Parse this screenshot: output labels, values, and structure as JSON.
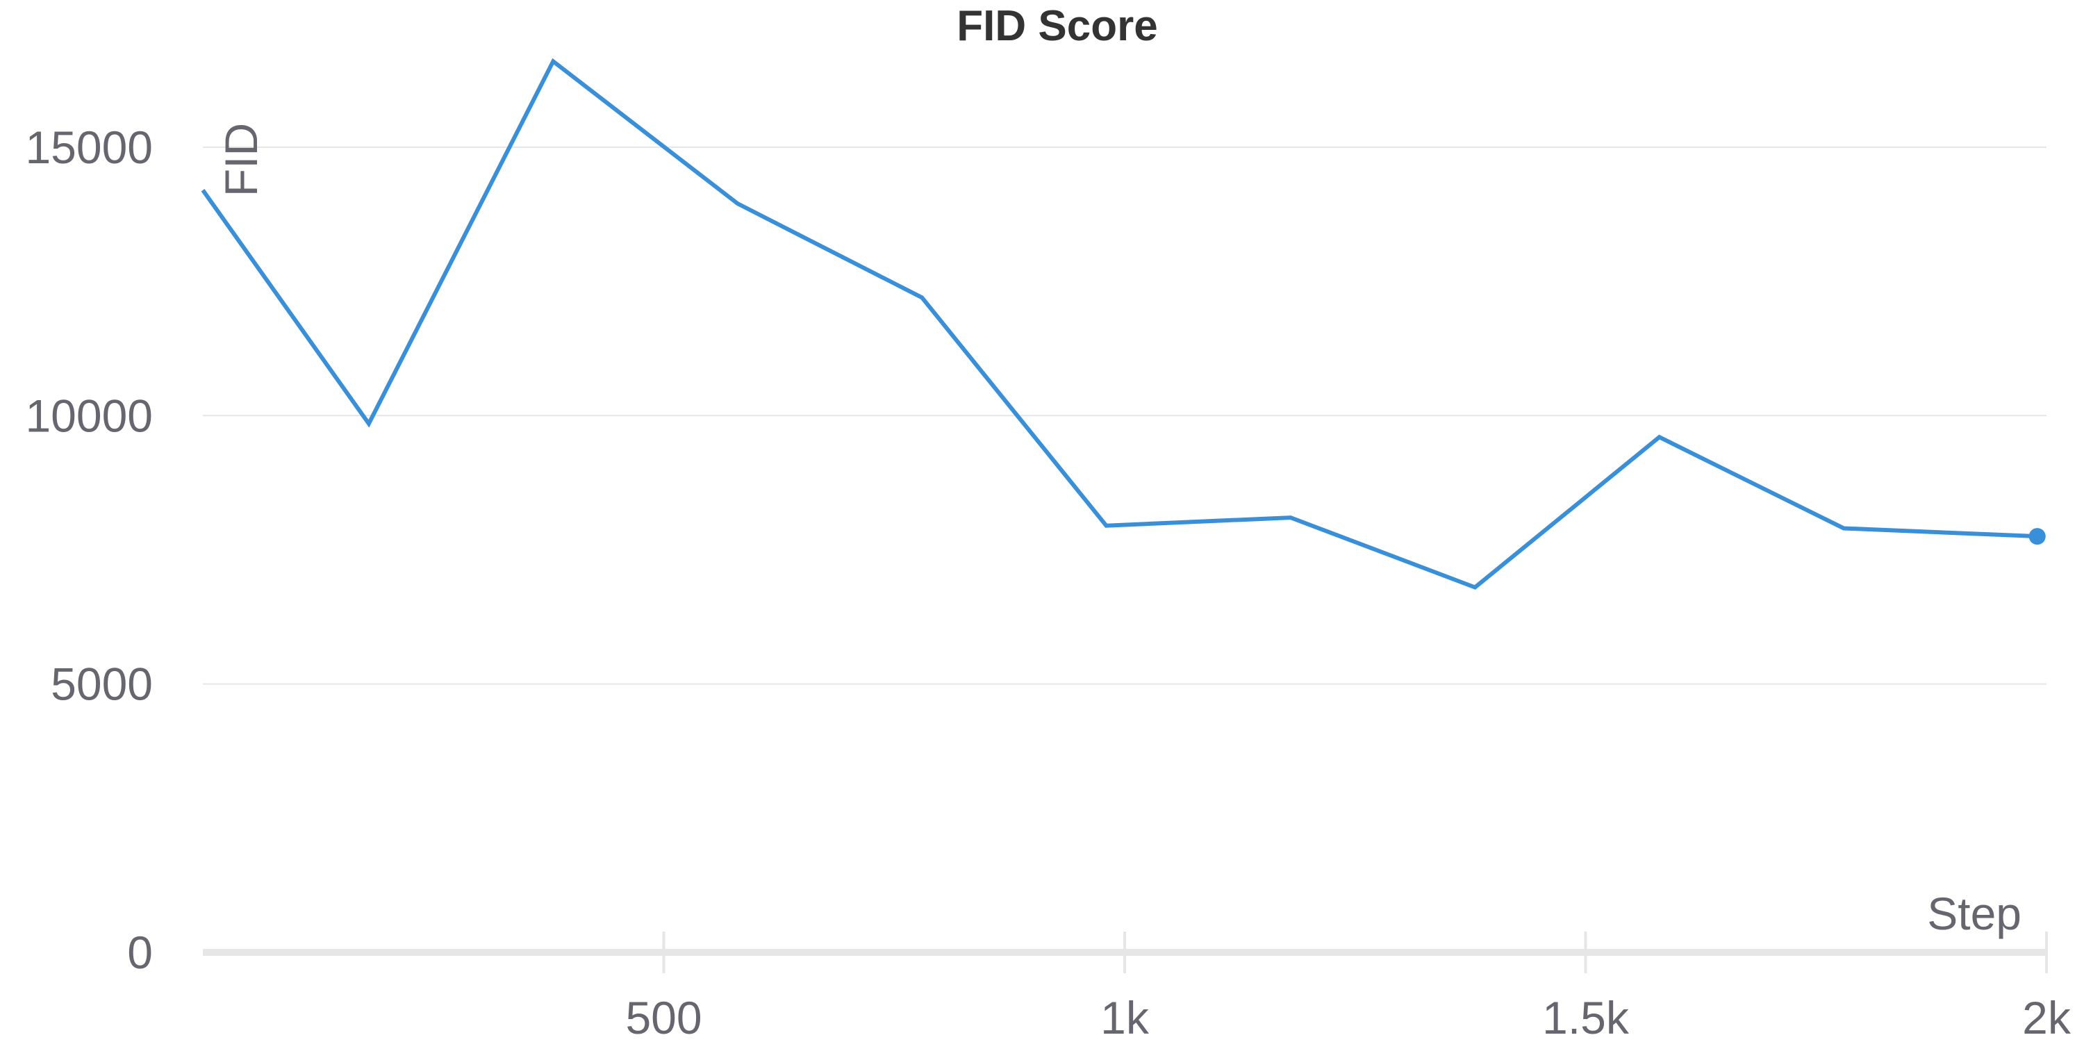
{
  "chart_data": {
    "type": "line",
    "title": "FID Score",
    "xlabel": "Step",
    "ylabel": "FID",
    "xlim": [
      0,
      2000
    ],
    "ylim": [
      0,
      16500
    ],
    "x_ticks": [
      500,
      1000,
      1500,
      2000
    ],
    "x_tick_labels": [
      "500",
      "1k",
      "1.5k",
      "2k"
    ],
    "y_ticks": [
      0,
      5000,
      10000,
      15000
    ],
    "y_tick_labels": [
      "0",
      "5000",
      "10000",
      "15000"
    ],
    "grid": "horizontal",
    "legend": "none",
    "series": [
      {
        "x": [
          0,
          180,
          380,
          580,
          780,
          980,
          1180,
          1380,
          1580,
          1780,
          1990
        ],
        "values": [
          14200,
          9850,
          16600,
          13950,
          12200,
          7950,
          8100,
          6800,
          9600,
          7900,
          7750
        ],
        "color": "#3a8fd9"
      }
    ],
    "colors": {
      "line": "#3a8fd9",
      "grid": "#e6e6e6",
      "axis": "#e6e6e6",
      "text": "#66666f",
      "title": "#333333"
    }
  }
}
